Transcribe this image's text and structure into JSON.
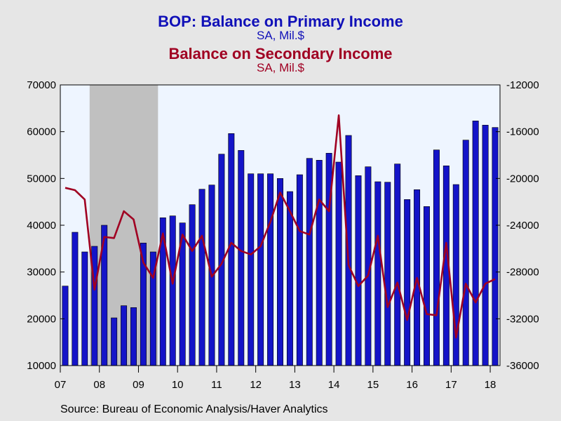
{
  "titles": {
    "primary": "BOP: Balance on Primary Income",
    "primary_unit": "SA, Mil.$",
    "secondary": "Balance on Secondary Income",
    "secondary_unit": "SA, Mil.$"
  },
  "source": "Source:  Bureau of Economic Analysis/Haver Analytics",
  "colors": {
    "bar": "#1414c8",
    "bar_edge": "#000000",
    "line": "#a00022",
    "plot_bg": "#eef5ff",
    "recession": "#c0c0c0",
    "page_bg": "#e6e6e6"
  },
  "chart_data": {
    "type": "bar",
    "grid": false,
    "recession_shading": {
      "start": "2007Q4",
      "end": "2009Q2"
    },
    "x_tick_labels": [
      "07",
      "08",
      "09",
      "10",
      "11",
      "12",
      "13",
      "14",
      "15",
      "16",
      "17",
      "18"
    ],
    "categories": [
      "2007Q1",
      "2007Q2",
      "2007Q3",
      "2007Q4",
      "2008Q1",
      "2008Q2",
      "2008Q3",
      "2008Q4",
      "2009Q1",
      "2009Q2",
      "2009Q3",
      "2009Q4",
      "2010Q1",
      "2010Q2",
      "2010Q3",
      "2010Q4",
      "2011Q1",
      "2011Q2",
      "2011Q3",
      "2011Q4",
      "2012Q1",
      "2012Q2",
      "2012Q3",
      "2012Q4",
      "2013Q1",
      "2013Q2",
      "2013Q3",
      "2013Q4",
      "2014Q1",
      "2014Q2",
      "2014Q3",
      "2014Q4",
      "2015Q1",
      "2015Q2",
      "2015Q3",
      "2015Q4",
      "2016Q1",
      "2016Q2",
      "2016Q3",
      "2016Q4",
      "2017Q1",
      "2017Q2",
      "2017Q3",
      "2017Q4",
      "2018Q1"
    ],
    "left_axis": {
      "ylim": [
        10000,
        70000
      ],
      "ticks": [
        "10000",
        "20000",
        "30000",
        "40000",
        "50000",
        "60000",
        "70000"
      ]
    },
    "right_axis": {
      "ylim": [
        -36000,
        -12000
      ],
      "ticks": [
        "-36000",
        "-32000",
        "-28000",
        "-24000",
        "-20000",
        "-16000",
        "-12000"
      ]
    },
    "series": [
      {
        "kind": "bar",
        "axis": "left",
        "values": [
          27000,
          38500,
          34300,
          35500,
          40000,
          20200,
          22800,
          22400,
          36200,
          34300,
          41600,
          42000,
          40500,
          44400,
          47700,
          48600,
          55200,
          59600,
          56000,
          51000,
          51000,
          51000,
          50000,
          47200,
          50800,
          54300,
          53900,
          55400,
          53500,
          59200,
          50600,
          52500,
          49300,
          49200,
          53100,
          45500,
          47600,
          44000,
          56100,
          52700,
          48700,
          58200,
          62300,
          61400,
          60900
        ]
      },
      {
        "kind": "line",
        "axis": "right",
        "values": [
          -20800,
          -21000,
          -21800,
          -29500,
          -25000,
          -25100,
          -22800,
          -23500,
          -27200,
          -28500,
          -24700,
          -29000,
          -24800,
          -26200,
          -24900,
          -28400,
          -27300,
          -25500,
          -26200,
          -26500,
          -25800,
          -23700,
          -21200,
          -22800,
          -24500,
          -24800,
          -21800,
          -22800,
          -14600,
          -27400,
          -29200,
          -28300,
          -24900,
          -31000,
          -28900,
          -32100,
          -28500,
          -31600,
          -31700,
          -25500,
          -33600,
          -29000,
          -30600,
          -29000,
          -28600
        ]
      }
    ]
  }
}
